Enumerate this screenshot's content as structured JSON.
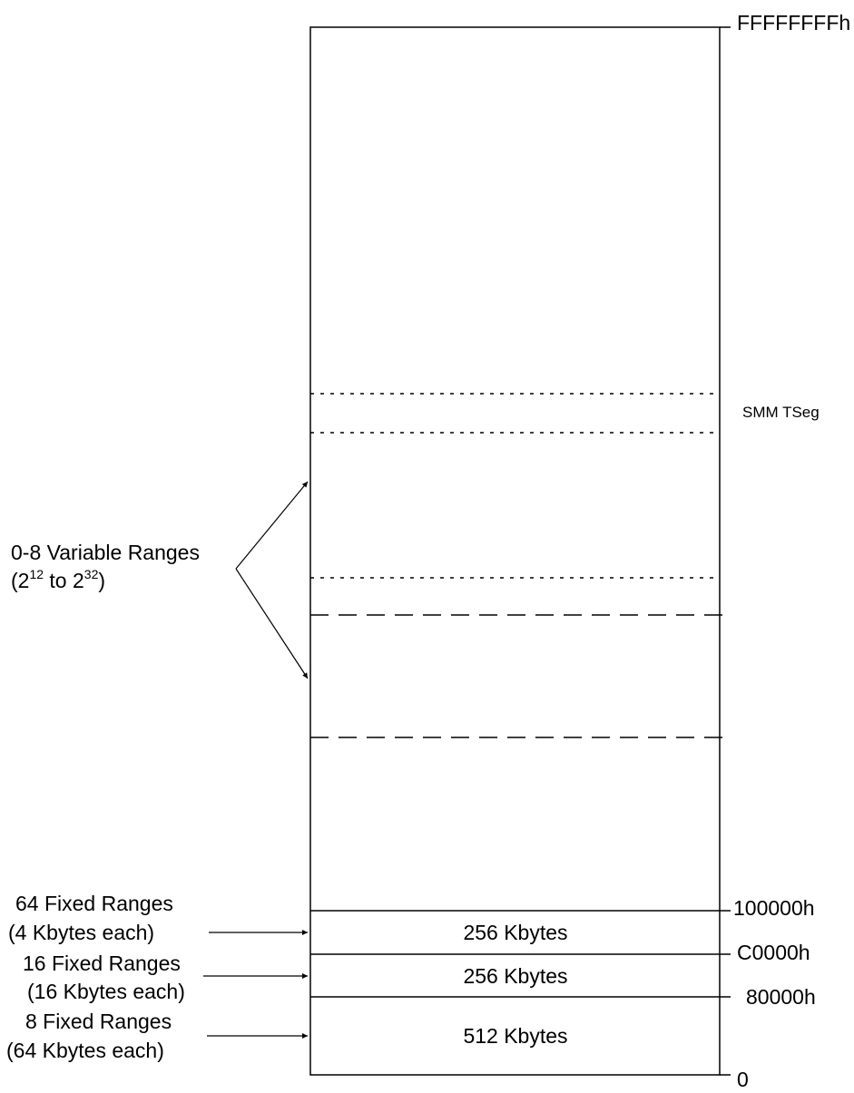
{
  "addresses": {
    "top": "FFFFFFFFh",
    "a100000": "100000h",
    "aC0000": "C0000h",
    "a80000": "80000h",
    "zero": "0"
  },
  "smm_label": "SMM TSeg",
  "variable": {
    "line1": "0-8 Variable Ranges",
    "paren_open": "(2",
    "exp1": "12",
    "middle": " to 2",
    "exp2": "32",
    "paren_close": ")"
  },
  "fixed": [
    {
      "line1": "64 Fixed Ranges",
      "line2": "(4 Kbytes each)",
      "size": "256 Kbytes"
    },
    {
      "line1": "16 Fixed Ranges",
      "line2": "(16 Kbytes each)",
      "size": "256 Kbytes"
    },
    {
      "line1": "8 Fixed Ranges",
      "line2": "(64 Kbytes each)",
      "size": "512 Kbytes"
    }
  ]
}
